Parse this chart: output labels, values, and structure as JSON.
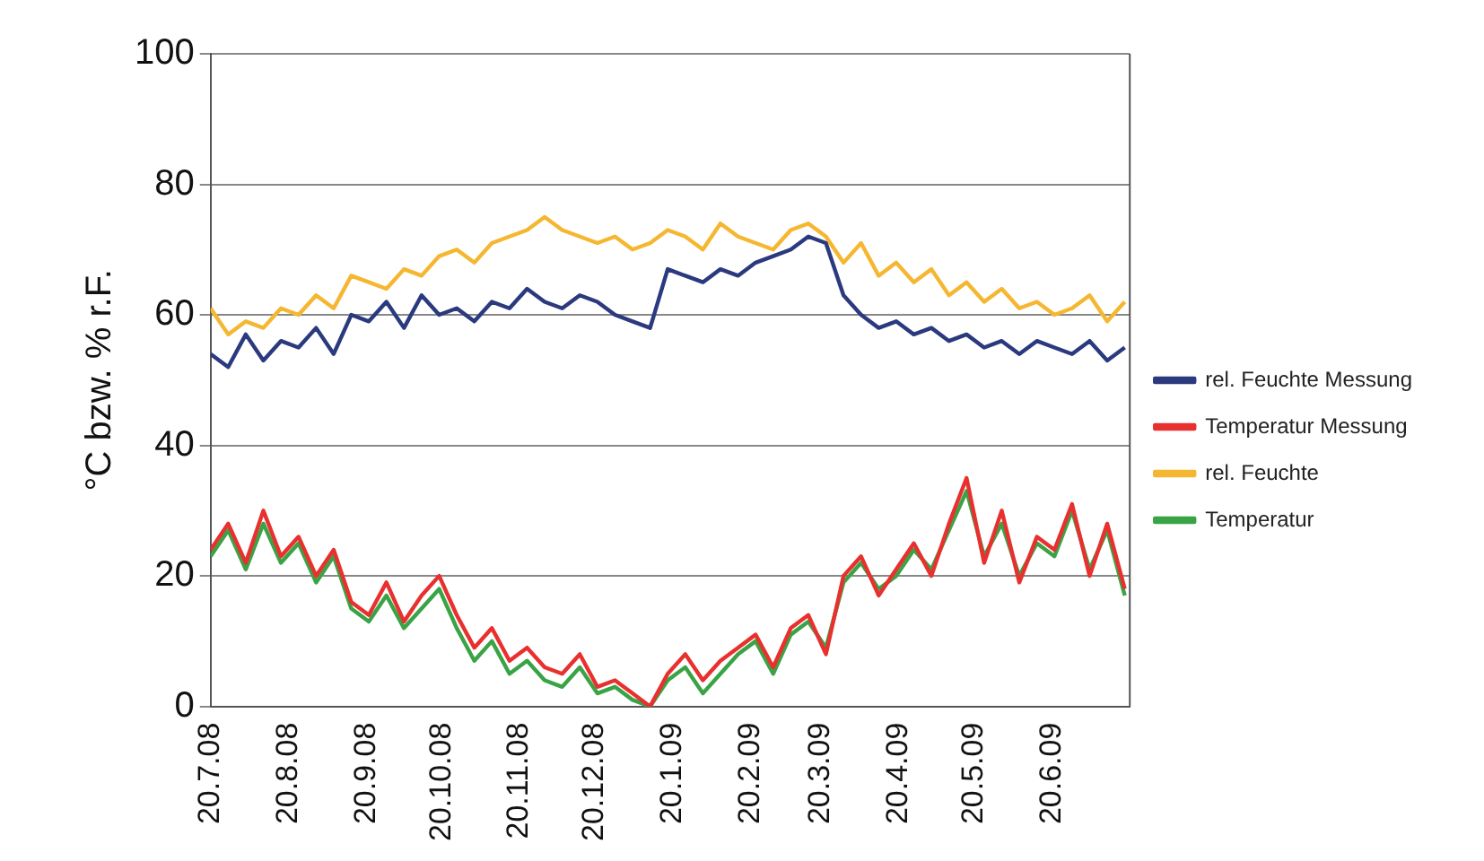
{
  "chart_data": {
    "type": "line",
    "ylabel": "°C bzw. % r.F.",
    "x": [
      "2008-07-20",
      "2008-07-27",
      "2008-08-03",
      "2008-08-10",
      "2008-08-17",
      "2008-08-24",
      "2008-08-31",
      "2008-09-07",
      "2008-09-14",
      "2008-09-21",
      "2008-09-28",
      "2008-10-05",
      "2008-10-12",
      "2008-10-19",
      "2008-10-26",
      "2008-11-02",
      "2008-11-09",
      "2008-11-16",
      "2008-11-23",
      "2008-11-30",
      "2008-12-07",
      "2008-12-14",
      "2008-12-21",
      "2008-12-28",
      "2009-01-04",
      "2009-01-11",
      "2009-01-18",
      "2009-01-25",
      "2009-02-01",
      "2009-02-08",
      "2009-02-15",
      "2009-02-22",
      "2009-03-01",
      "2009-03-08",
      "2009-03-15",
      "2009-03-22",
      "2009-03-29",
      "2009-04-05",
      "2009-04-12",
      "2009-04-19",
      "2009-04-26",
      "2009-05-03",
      "2009-05-10",
      "2009-05-17",
      "2009-05-24",
      "2009-05-31",
      "2009-06-07",
      "2009-06-14",
      "2009-06-21",
      "2009-06-28",
      "2009-07-05",
      "2009-07-12",
      "2009-07-19"
    ],
    "series": [
      {
        "name": "Temperatur",
        "color": "#3aa346",
        "values": [
          23,
          27,
          21,
          28,
          22,
          25,
          19,
          23,
          15,
          13,
          17,
          12,
          15,
          18,
          12,
          7,
          10,
          5,
          7,
          4,
          3,
          6,
          2,
          3,
          1,
          0,
          4,
          6,
          2,
          5,
          8,
          10,
          5,
          11,
          13,
          9,
          19,
          22,
          18,
          20,
          24,
          21,
          27,
          33,
          23,
          28,
          20,
          25,
          23,
          30,
          21,
          27,
          17
        ]
      },
      {
        "name": "rel. Feuchte",
        "color": "#f5b731",
        "values": [
          61,
          57,
          59,
          58,
          61,
          60,
          63,
          61,
          66,
          65,
          64,
          67,
          66,
          69,
          70,
          68,
          71,
          72,
          73,
          75,
          73,
          72,
          71,
          72,
          70,
          71,
          73,
          72,
          70,
          74,
          72,
          71,
          70,
          73,
          74,
          72,
          68,
          71,
          66,
          68,
          65,
          67,
          63,
          65,
          62,
          64,
          61,
          62,
          60,
          61,
          63,
          59,
          62
        ]
      },
      {
        "name": "Temperatur Messung",
        "color": "#e8302f",
        "values": [
          24,
          28,
          22,
          30,
          23,
          26,
          20,
          24,
          16,
          14,
          19,
          13,
          17,
          20,
          14,
          9,
          12,
          7,
          9,
          6,
          5,
          8,
          3,
          4,
          2,
          0,
          5,
          8,
          4,
          7,
          9,
          11,
          6,
          12,
          14,
          8,
          20,
          23,
          17,
          21,
          25,
          20,
          28,
          35,
          22,
          30,
          19,
          26,
          24,
          31,
          20,
          28,
          18
        ]
      },
      {
        "name": "rel. Feuchte Messung",
        "color": "#2b3a7e",
        "values": [
          54,
          52,
          57,
          53,
          56,
          55,
          58,
          54,
          60,
          59,
          62,
          58,
          63,
          60,
          61,
          59,
          62,
          61,
          64,
          62,
          61,
          63,
          62,
          60,
          59,
          58,
          67,
          66,
          65,
          67,
          66,
          68,
          69,
          70,
          72,
          71,
          63,
          60,
          58,
          59,
          57,
          58,
          56,
          57,
          55,
          56,
          54,
          56,
          55,
          54,
          56,
          53,
          55
        ]
      }
    ],
    "xlim": [
      "2008-07-20",
      "2009-07-21"
    ],
    "xticks": [
      {
        "value": "2008-07-20",
        "label": "20.7.08"
      },
      {
        "value": "2008-08-20",
        "label": "20.8.08"
      },
      {
        "value": "2008-09-20",
        "label": "20.9.08"
      },
      {
        "value": "2008-10-20",
        "label": "20.10.08"
      },
      {
        "value": "2008-11-20",
        "label": "20.11.08"
      },
      {
        "value": "2008-12-20",
        "label": "20.12.08"
      },
      {
        "value": "2009-01-20",
        "label": "20.1.09"
      },
      {
        "value": "2009-02-20",
        "label": "20.2.09"
      },
      {
        "value": "2009-03-20",
        "label": "20.3.09"
      },
      {
        "value": "2009-04-20",
        "label": "20.4.09"
      },
      {
        "value": "2009-05-20",
        "label": "20.5.09"
      },
      {
        "value": "2009-06-20",
        "label": "20.6.09"
      }
    ],
    "ylim": [
      0,
      100
    ],
    "yticks": [
      0,
      20,
      40,
      60,
      80,
      100
    ],
    "grid": "y",
    "legend": "right",
    "marker": "none",
    "line_style": "solid"
  }
}
